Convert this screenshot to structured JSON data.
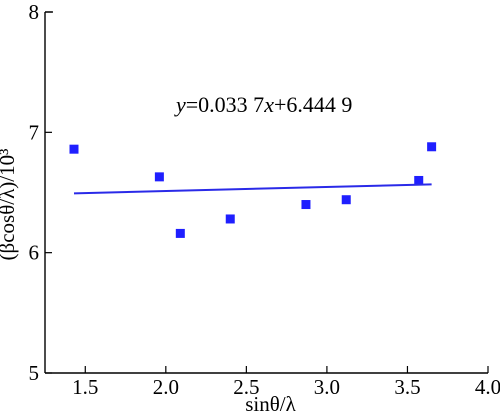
{
  "chart_data": {
    "type": "scatter",
    "title": "",
    "xlabel": "sinθ/λ",
    "ylabel": "(βcosθ/λ)/10³",
    "xlim": [
      1.25,
      4.0
    ],
    "ylim": [
      5,
      8
    ],
    "xticks": [
      1.5,
      2.0,
      2.5,
      3.0,
      3.5,
      4.0
    ],
    "xtick_labels": [
      "1.5",
      "2.0",
      "2.5",
      "3.0",
      "3.5",
      "4.0"
    ],
    "yticks": [
      5,
      6,
      7,
      8
    ],
    "ytick_labels": [
      "5",
      "6",
      "7",
      "8"
    ],
    "series": [
      {
        "type": "scatter",
        "color": "#1f1fff",
        "x": [
          1.43,
          1.96,
          2.09,
          2.4,
          2.87,
          3.12,
          3.57,
          3.65
        ],
        "y": [
          6.86,
          6.63,
          6.16,
          6.28,
          6.4,
          6.44,
          6.6,
          6.88
        ]
      },
      {
        "type": "line",
        "color": "#2a2ae8",
        "x": [
          1.43,
          3.65
        ],
        "y": [
          6.4931,
          6.5679
        ]
      }
    ],
    "annotations": [
      {
        "y_symbol": "y",
        "eq_part1": "=0.033 7",
        "x_symbol": "x",
        "eq_part2": "+6.444 9"
      }
    ],
    "grid": false,
    "legend": "none"
  }
}
